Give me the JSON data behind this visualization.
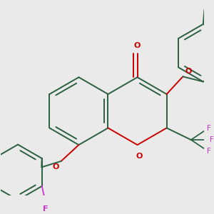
{
  "background_color": "#eaeaea",
  "bond_color": "#2a6040",
  "o_color": "#cc0000",
  "f_color": "#cc33cc",
  "lw": 1.4,
  "figsize": [
    3.0,
    3.0
  ],
  "dpi": 100,
  "xlim": [
    -2.8,
    3.2
  ],
  "ylim": [
    -2.5,
    3.0
  ]
}
